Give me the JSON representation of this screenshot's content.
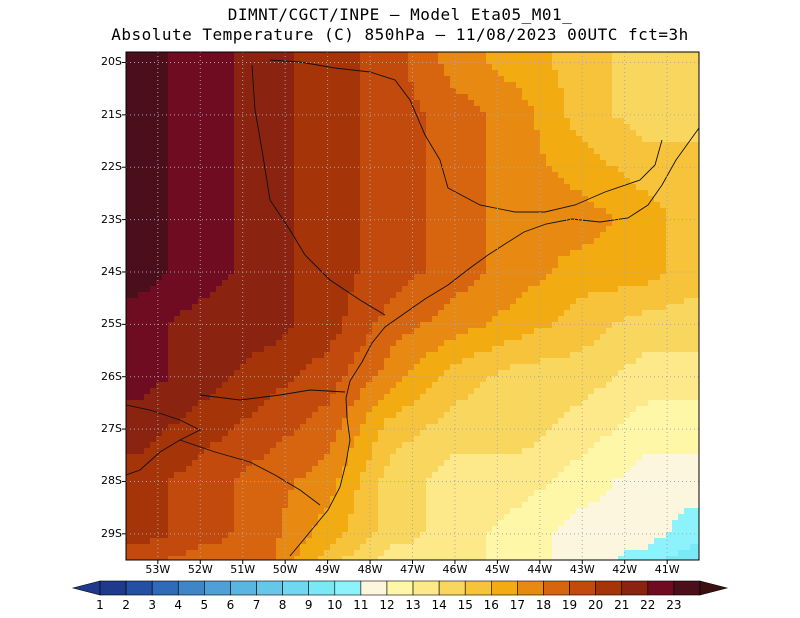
{
  "header": {
    "line1": "DIMNT/CGCT/INPE –  Model Eta05_M01_",
    "line2": "Absolute Temperature (C) 850hPa –  11/08/2023 00UTC fct=3h"
  },
  "map": {
    "lat_labels": [
      "20S",
      "21S",
      "22S",
      "23S",
      "24S",
      "25S",
      "26S",
      "27S",
      "28S",
      "29S"
    ],
    "lon_labels": [
      "53W",
      "52W",
      "51W",
      "50W",
      "49W",
      "48W",
      "47W",
      "46W",
      "45W",
      "44W",
      "43W",
      "42W",
      "41W"
    ],
    "lon_range": [
      -53.75,
      -40.25
    ],
    "lat_range": [
      -29.5,
      -19.8
    ]
  },
  "colorbar": {
    "labels": [
      "1",
      "2",
      "3",
      "4",
      "5",
      "6",
      "7",
      "8",
      "9",
      "10",
      "11",
      "12",
      "13",
      "14",
      "15",
      "16",
      "17",
      "18",
      "19",
      "20",
      "21",
      "22",
      "23"
    ],
    "colors": [
      "#1f3a8c",
      "#2450a4",
      "#2f6bb8",
      "#3f86c8",
      "#4ea0d6",
      "#5ab5e0",
      "#66c8e8",
      "#6fd8f0",
      "#7ae8f5",
      "#8cf2fb",
      "#fdf6df",
      "#fff7a8",
      "#fde98a",
      "#f9d75e",
      "#f6c33a",
      "#f3ab12",
      "#e88a12",
      "#d7650f",
      "#c24a0c",
      "#a53409",
      "#8a2410",
      "#6f0c22",
      "#4a0f1a"
    ],
    "min_arrow_color": "#1f3a8c",
    "max_arrow_color": "#3d1010"
  },
  "chart_data": {
    "type": "heatmap",
    "title": "Absolute Temperature (C) 850hPa",
    "variable": "temperature_850hPa",
    "units": "C",
    "valid_time": "11/08/2023 00UTC fct=3h",
    "lon_range": [
      -53.75,
      -40.25
    ],
    "lat_range": [
      -29.5,
      -19.8
    ],
    "levels": [
      1,
      2,
      3,
      4,
      5,
      6,
      7,
      8,
      9,
      10,
      11,
      12,
      13,
      14,
      15,
      16,
      17,
      18,
      19,
      20,
      21,
      22,
      23
    ],
    "grid_lons": [
      -53.5,
      -52,
      -50.5,
      -49,
      -47.5,
      -46,
      -44.5,
      -43,
      -41.5,
      -40.5
    ],
    "grid_lats": [
      -20,
      -21,
      -22,
      -23,
      -24,
      -25,
      -26,
      -27,
      -28,
      -29,
      -29.5
    ],
    "values": [
      [
        23,
        22,
        21,
        20,
        19,
        17,
        16,
        15,
        14,
        14
      ],
      [
        23,
        22,
        21,
        20,
        19,
        18,
        17,
        15,
        14,
        14
      ],
      [
        23,
        22,
        21,
        20,
        19,
        18,
        17,
        16,
        15,
        15
      ],
      [
        23,
        22,
        21,
        20,
        19,
        18,
        17,
        17,
        16,
        15
      ],
      [
        23,
        22,
        21,
        20,
        19,
        18,
        17,
        16,
        16,
        15
      ],
      [
        22,
        21,
        21,
        20,
        18,
        17,
        16,
        15,
        14,
        14
      ],
      [
        22,
        21,
        20,
        19,
        17,
        15,
        14,
        14,
        13,
        13
      ],
      [
        21,
        20,
        19,
        18,
        15,
        14,
        14,
        13,
        12,
        12
      ],
      [
        20,
        19,
        18,
        17,
        14,
        13,
        13,
        12,
        11,
        11
      ],
      [
        20,
        19,
        18,
        16,
        14,
        13,
        12,
        11,
        11,
        10
      ],
      [
        19,
        18,
        18,
        15,
        13,
        13,
        12,
        11,
        10,
        9
      ]
    ]
  }
}
